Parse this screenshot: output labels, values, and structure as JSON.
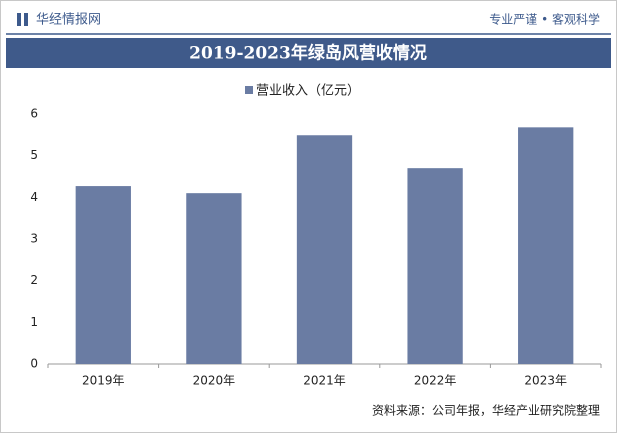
{
  "header": {
    "brand": "华经情报网",
    "slogan": "专业严谨 • 客观科学"
  },
  "chart_data": {
    "type": "bar",
    "title": "2019-2023年绿岛风营收情况",
    "categories": [
      "2019年",
      "2020年",
      "2021年",
      "2022年",
      "2023年"
    ],
    "series": [
      {
        "name": "营业收入（亿元）",
        "color": "#6a7ca3",
        "values": [
          4.27,
          4.1,
          5.49,
          4.7,
          5.68
        ]
      }
    ],
    "ylim": [
      0,
      6
    ],
    "yticks": [
      0,
      1,
      2,
      3,
      4,
      5,
      6
    ],
    "grid": false,
    "source": "资料来源：公司年报，华经产业研究院整理"
  }
}
